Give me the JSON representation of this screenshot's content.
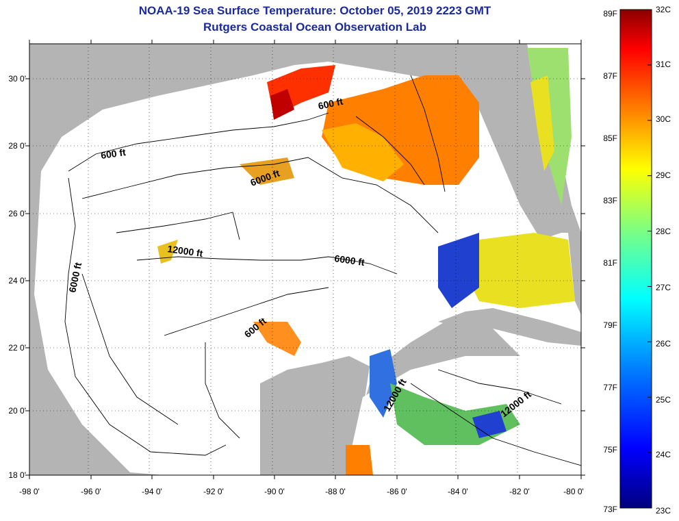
{
  "title": {
    "line1": "NOAA-19 Sea Surface Temperature:  October 05, 2019 2223 GMT",
    "line2": "Rutgers Coastal Ocean Observation Lab"
  },
  "axes": {
    "lon_labels": [
      "-98 0'",
      "-96 0'",
      "-94 0'",
      "-92 0'",
      "-90 0'",
      "-88 0'",
      "-86 0'",
      "-84 0'",
      "-82 0'",
      "-80 0'"
    ],
    "lat_labels": [
      "30 0'",
      "28 0'",
      "26 0'",
      "24 0'",
      "22 0'",
      "20 0'",
      "18 0'"
    ]
  },
  "contour_labels": [
    "600 ft",
    "600 ft",
    "6000 ft",
    "12000 ft",
    "6000 ft",
    "6000 ft",
    "600 ft",
    "12000 ft",
    "12000 ft"
  ],
  "colorbar": {
    "f_labels": [
      "89F",
      "87F",
      "85F",
      "83F",
      "81F",
      "79F",
      "77F",
      "75F",
      "73F"
    ],
    "c_labels": [
      "32C",
      "31C",
      "30C",
      "29C",
      "28C",
      "27C",
      "26C",
      "25C",
      "24C",
      "23C"
    ],
    "colors": [
      "#8b0000",
      "#ff0000",
      "#ff7f00",
      "#ffff00",
      "#7fff7f",
      "#00ffff",
      "#007fff",
      "#0000ff",
      "#00007f"
    ]
  },
  "colors": {
    "land": "#b4b4b4",
    "ocean": "#ffffff",
    "title": "#1a2a9c"
  }
}
